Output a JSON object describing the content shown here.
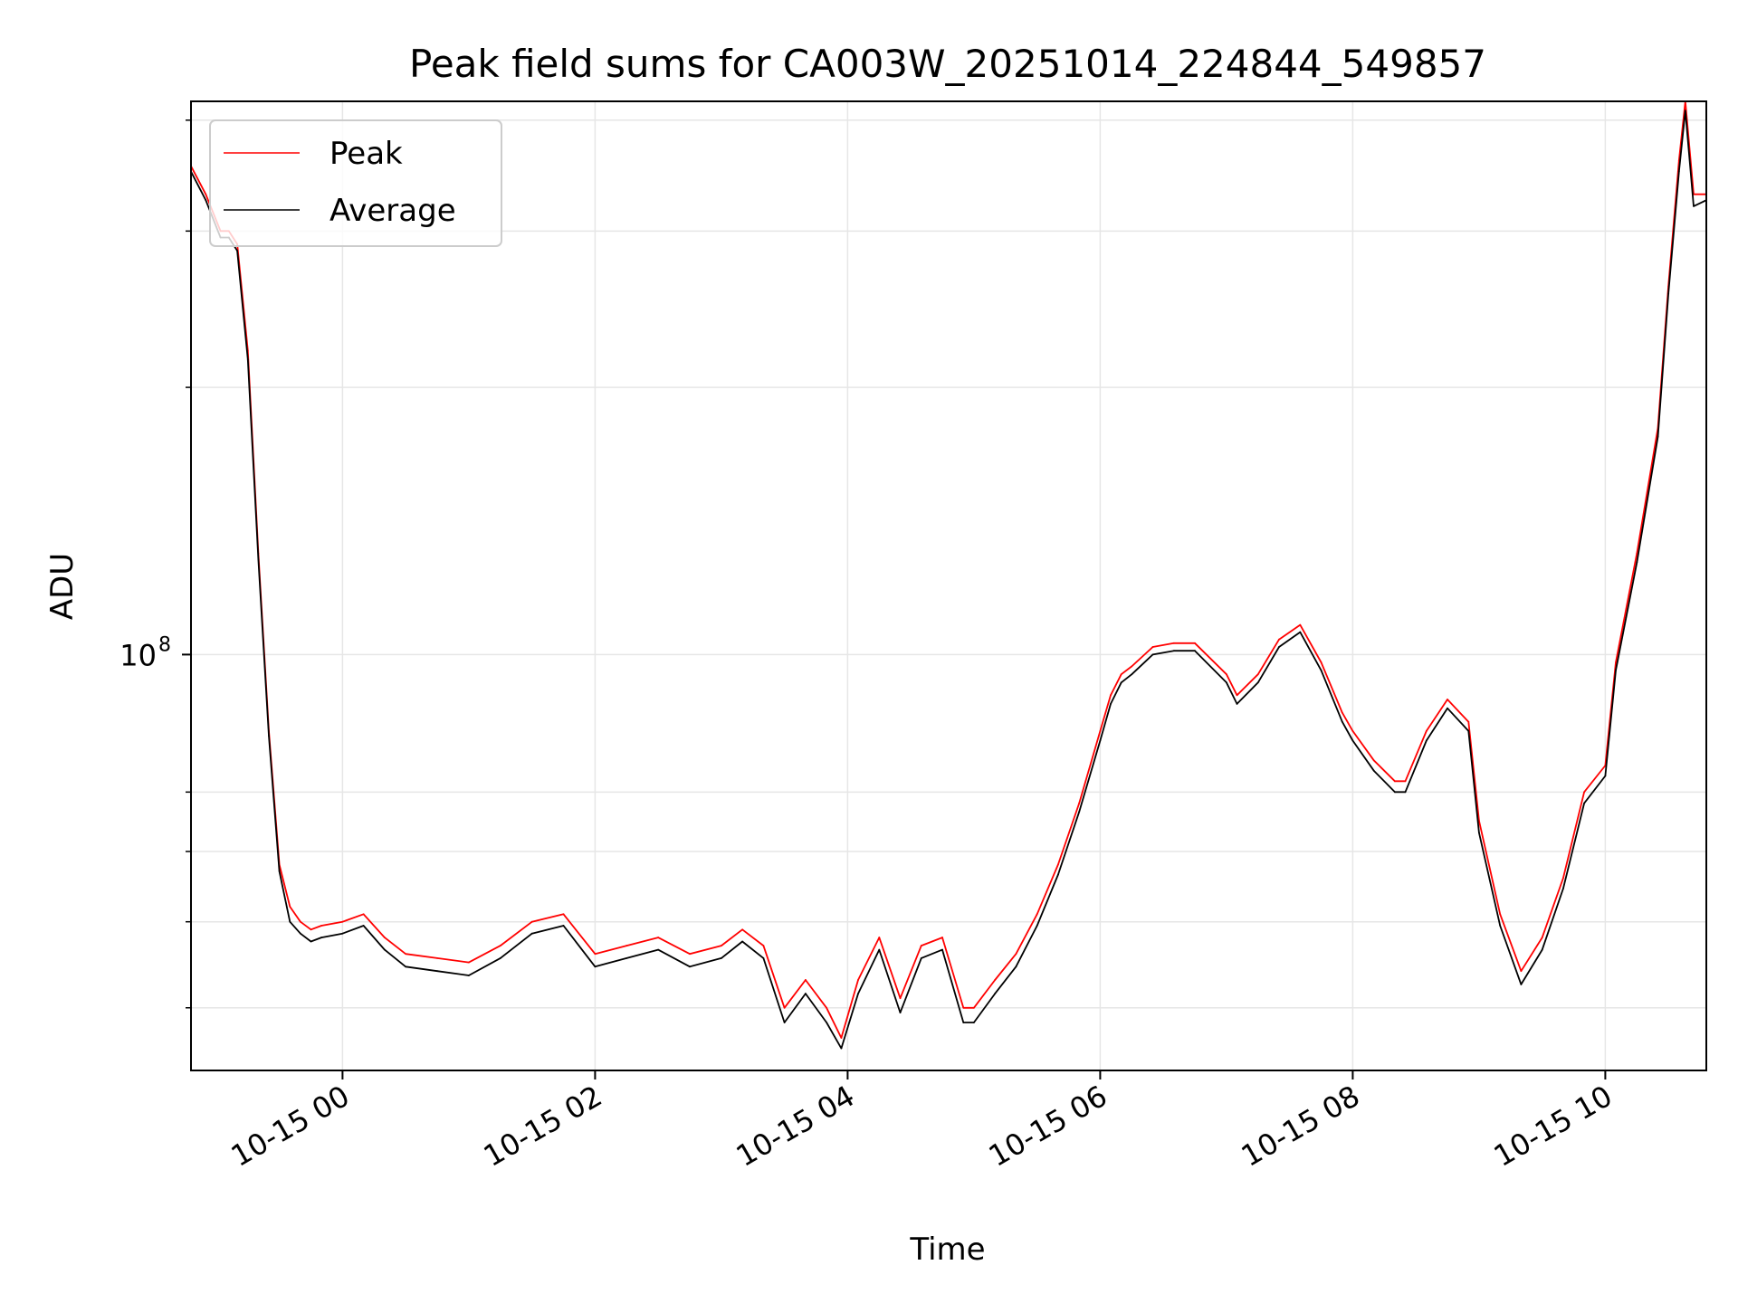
{
  "chart_data": {
    "type": "line",
    "title": "Peak field sums for CA003W_20251014_224844_549857",
    "xlabel": "Time",
    "ylabel": "ADU",
    "x_tick_labels": [
      "10-15 00",
      "10-15 02",
      "10-15 04",
      "10-15 06",
      "10-15 08",
      "10-15 10"
    ],
    "y_tick_label": {
      "base": "10",
      "exponent": "8"
    },
    "y_scale": "log",
    "ylim": [
      34000000,
      420000000
    ],
    "xlim": [
      "2025-10-14 22:48",
      "2025-10-15 10:48"
    ],
    "grid": true,
    "legend_position": "upper-left",
    "colors": {
      "peak": "#ff0000",
      "average": "#000000",
      "grid": "#e6e6e6"
    },
    "series": [
      {
        "name": "Peak",
        "x": [
          "2025-10-14 22:48",
          "2025-10-14 22:55",
          "2025-10-14 23:02",
          "2025-10-14 23:06",
          "2025-10-14 23:10",
          "2025-10-14 23:15",
          "2025-10-14 23:20",
          "2025-10-14 23:25",
          "2025-10-14 23:30",
          "2025-10-14 23:35",
          "2025-10-14 23:40",
          "2025-10-14 23:45",
          "2025-10-14 23:50",
          "2025-10-15 00:00",
          "2025-10-15 00:10",
          "2025-10-15 00:20",
          "2025-10-15 00:30",
          "2025-10-15 00:45",
          "2025-10-15 01:00",
          "2025-10-15 01:15",
          "2025-10-15 01:30",
          "2025-10-15 01:45",
          "2025-10-15 02:00",
          "2025-10-15 02:15",
          "2025-10-15 02:30",
          "2025-10-15 02:45",
          "2025-10-15 03:00",
          "2025-10-15 03:10",
          "2025-10-15 03:20",
          "2025-10-15 03:30",
          "2025-10-15 03:40",
          "2025-10-15 03:50",
          "2025-10-15 03:57",
          "2025-10-15 04:05",
          "2025-10-15 04:15",
          "2025-10-15 04:25",
          "2025-10-15 04:35",
          "2025-10-15 04:45",
          "2025-10-15 04:55",
          "2025-10-15 05:00",
          "2025-10-15 05:10",
          "2025-10-15 05:20",
          "2025-10-15 05:30",
          "2025-10-15 05:40",
          "2025-10-15 05:50",
          "2025-10-15 06:00",
          "2025-10-15 06:05",
          "2025-10-15 06:10",
          "2025-10-15 06:15",
          "2025-10-15 06:25",
          "2025-10-15 06:35",
          "2025-10-15 06:45",
          "2025-10-15 07:00",
          "2025-10-15 07:05",
          "2025-10-15 07:15",
          "2025-10-15 07:25",
          "2025-10-15 07:35",
          "2025-10-15 07:45",
          "2025-10-15 07:55",
          "2025-10-15 08:00",
          "2025-10-15 08:10",
          "2025-10-15 08:20",
          "2025-10-15 08:25",
          "2025-10-15 08:35",
          "2025-10-15 08:45",
          "2025-10-15 08:55",
          "2025-10-15 09:00",
          "2025-10-15 09:10",
          "2025-10-15 09:20",
          "2025-10-15 09:30",
          "2025-10-15 09:40",
          "2025-10-15 09:50",
          "2025-10-15 10:00",
          "2025-10-15 10:05",
          "2025-10-15 10:15",
          "2025-10-15 10:25",
          "2025-10-15 10:30",
          "2025-10-15 10:35",
          "2025-10-15 10:38",
          "2025-10-15 10:42",
          "2025-10-15 10:48"
        ],
        "values": [
          355000000,
          330000000,
          300000000,
          300000000,
          290000000,
          220000000,
          130000000,
          82000000,
          58000000,
          52000000,
          50000000,
          49000000,
          49500000,
          50000000,
          51000000,
          48000000,
          46000000,
          45500000,
          45000000,
          47000000,
          50000000,
          51000000,
          46000000,
          47000000,
          48000000,
          46000000,
          47000000,
          49000000,
          47000000,
          40000000,
          43000000,
          40000000,
          37000000,
          43000000,
          48000000,
          41000000,
          47000000,
          48000000,
          40000000,
          40000000,
          43000000,
          46000000,
          51000000,
          58000000,
          68000000,
          82000000,
          90000000,
          95000000,
          97000000,
          102000000,
          103000000,
          103000000,
          95000000,
          90000000,
          95000000,
          104000000,
          108000000,
          98000000,
          86000000,
          82000000,
          76000000,
          72000000,
          72000000,
          82000000,
          89000000,
          84000000,
          65000000,
          51000000,
          44000000,
          48000000,
          56000000,
          70000000,
          75000000,
          98000000,
          130000000,
          180000000,
          260000000,
          360000000,
          420000000,
          330000000,
          330000000
        ]
      },
      {
        "name": "Average",
        "x": [
          "2025-10-14 22:48",
          "2025-10-14 22:55",
          "2025-10-14 23:02",
          "2025-10-14 23:06",
          "2025-10-14 23:10",
          "2025-10-14 23:15",
          "2025-10-14 23:20",
          "2025-10-14 23:25",
          "2025-10-14 23:30",
          "2025-10-14 23:35",
          "2025-10-14 23:40",
          "2025-10-14 23:45",
          "2025-10-14 23:50",
          "2025-10-15 00:00",
          "2025-10-15 00:10",
          "2025-10-15 00:20",
          "2025-10-15 00:30",
          "2025-10-15 00:45",
          "2025-10-15 01:00",
          "2025-10-15 01:15",
          "2025-10-15 01:30",
          "2025-10-15 01:45",
          "2025-10-15 02:00",
          "2025-10-15 02:15",
          "2025-10-15 02:30",
          "2025-10-15 02:45",
          "2025-10-15 03:00",
          "2025-10-15 03:10",
          "2025-10-15 03:20",
          "2025-10-15 03:30",
          "2025-10-15 03:40",
          "2025-10-15 03:50",
          "2025-10-15 03:57",
          "2025-10-15 04:05",
          "2025-10-15 04:15",
          "2025-10-15 04:25",
          "2025-10-15 04:35",
          "2025-10-15 04:45",
          "2025-10-15 04:55",
          "2025-10-15 05:00",
          "2025-10-15 05:10",
          "2025-10-15 05:20",
          "2025-10-15 05:30",
          "2025-10-15 05:40",
          "2025-10-15 05:50",
          "2025-10-15 06:00",
          "2025-10-15 06:05",
          "2025-10-15 06:10",
          "2025-10-15 06:15",
          "2025-10-15 06:25",
          "2025-10-15 06:35",
          "2025-10-15 06:45",
          "2025-10-15 07:00",
          "2025-10-15 07:05",
          "2025-10-15 07:15",
          "2025-10-15 07:25",
          "2025-10-15 07:35",
          "2025-10-15 07:45",
          "2025-10-15 07:55",
          "2025-10-15 08:00",
          "2025-10-15 08:10",
          "2025-10-15 08:20",
          "2025-10-15 08:25",
          "2025-10-15 08:35",
          "2025-10-15 08:45",
          "2025-10-15 08:55",
          "2025-10-15 09:00",
          "2025-10-15 09:10",
          "2025-10-15 09:20",
          "2025-10-15 09:30",
          "2025-10-15 09:40",
          "2025-10-15 09:50",
          "2025-10-15 10:00",
          "2025-10-15 10:05",
          "2025-10-15 10:15",
          "2025-10-15 10:25",
          "2025-10-15 10:30",
          "2025-10-15 10:35",
          "2025-10-15 10:38",
          "2025-10-15 10:42",
          "2025-10-15 10:48"
        ],
        "values": [
          350000000,
          325000000,
          295000000,
          295000000,
          285000000,
          215000000,
          128000000,
          81000000,
          57000000,
          50000000,
          48500000,
          47500000,
          48000000,
          48500000,
          49500000,
          46500000,
          44500000,
          44000000,
          43500000,
          45500000,
          48500000,
          49500000,
          44500000,
          45500000,
          46500000,
          44500000,
          45500000,
          47500000,
          45500000,
          38500000,
          41500000,
          38500000,
          36000000,
          41500000,
          46500000,
          39500000,
          45500000,
          46500000,
          38500000,
          38500000,
          41500000,
          44500000,
          49500000,
          56500000,
          66500000,
          80000000,
          88000000,
          93000000,
          95000000,
          100000000,
          101000000,
          101000000,
          93000000,
          88000000,
          93000000,
          102000000,
          106000000,
          96000000,
          84000000,
          80000000,
          74000000,
          70000000,
          70000000,
          80000000,
          87000000,
          82000000,
          63000000,
          49500000,
          42500000,
          46500000,
          54500000,
          68000000,
          73000000,
          96000000,
          127000000,
          176000000,
          255000000,
          350000000,
          410000000,
          320000000,
          325000000
        ]
      }
    ]
  }
}
